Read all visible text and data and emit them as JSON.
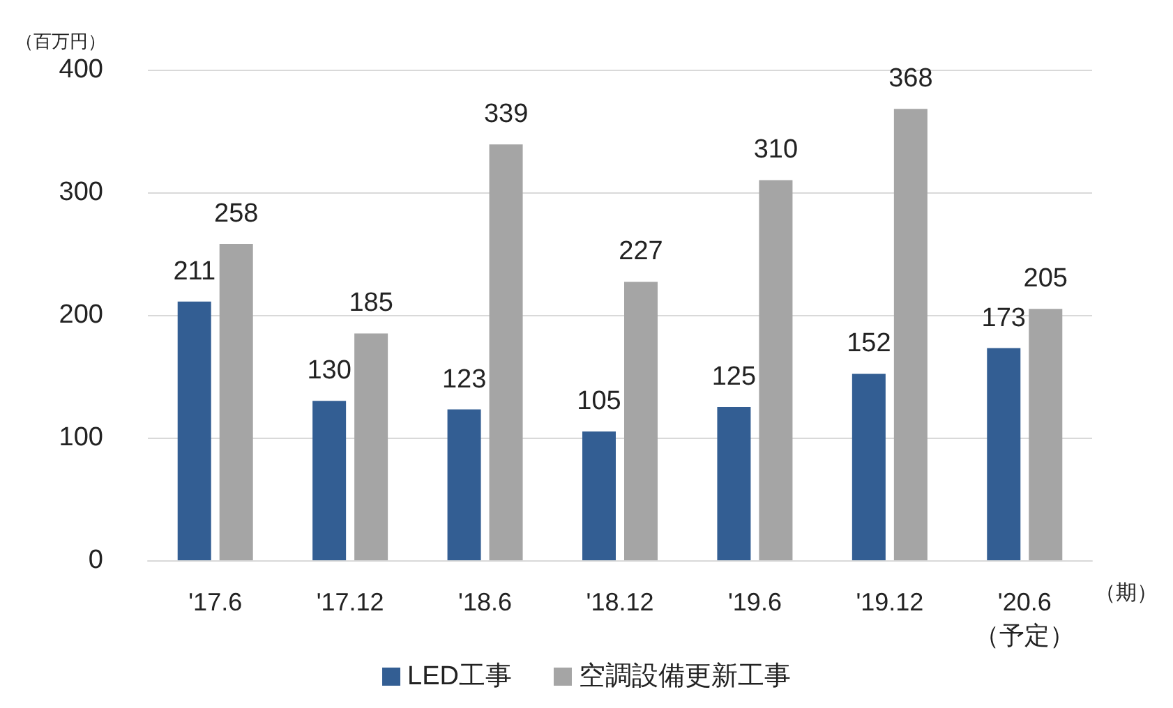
{
  "chart_data": {
    "type": "bar",
    "ylabel": "（百万円）",
    "xlabel": "（期）",
    "categories": [
      "'17.6",
      "'17.12",
      "'18.6",
      "'18.12",
      "'19.6",
      "'19.12",
      "'20.6\n（予定）"
    ],
    "series": [
      {
        "name": "LED工事",
        "color": "#335e93",
        "values": [
          211,
          130,
          123,
          105,
          125,
          152,
          173
        ]
      },
      {
        "name": "空調設備更新工事",
        "color": "#a5a5a5",
        "values": [
          258,
          185,
          339,
          227,
          310,
          368,
          205
        ]
      }
    ],
    "ylim": [
      0,
      400
    ],
    "yticks": [
      0,
      100,
      200,
      300,
      400
    ],
    "grid": "y",
    "legend": "bottom",
    "data_labels": true
  }
}
